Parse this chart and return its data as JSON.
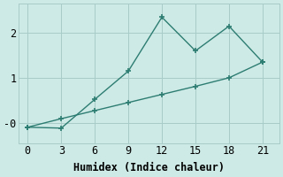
{
  "xlabel": "Humidex (Indice chaleur)",
  "bg_color": "#ceeae6",
  "line_color": "#2d7d72",
  "grid_color": "#a8ccc8",
  "line1_x": [
    0,
    3,
    6,
    9,
    12,
    15,
    18,
    21
  ],
  "line1_y": [
    -0.1,
    -0.12,
    0.52,
    1.15,
    2.35,
    1.6,
    2.15,
    1.35
  ],
  "line2_x": [
    0,
    3,
    6,
    9,
    12,
    15,
    18,
    21
  ],
  "line2_y": [
    -0.1,
    0.09,
    0.27,
    0.45,
    0.63,
    0.81,
    1.0,
    1.35
  ],
  "xlim": [
    -0.8,
    22.5
  ],
  "ylim": [
    -0.45,
    2.65
  ],
  "xticks": [
    0,
    3,
    6,
    9,
    12,
    15,
    18,
    21
  ],
  "yticks": [
    0,
    1,
    2
  ],
  "ytick_labels": [
    "-0",
    "1",
    "2"
  ],
  "fontsize": 8.5,
  "marker": "+",
  "markersize": 5,
  "linewidth": 1.0
}
